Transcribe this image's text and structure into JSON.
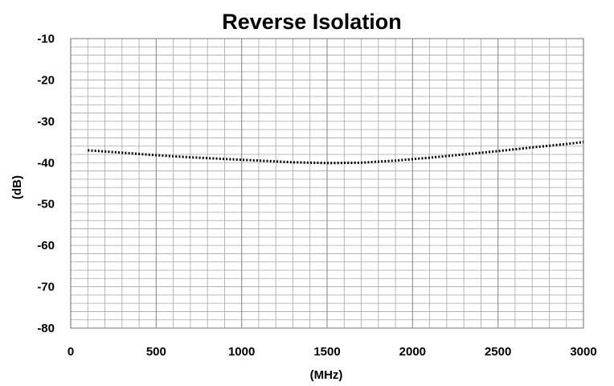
{
  "chart_data": {
    "type": "line",
    "title": "Reverse Isolation",
    "xlabel": "(MHz)",
    "ylabel": "(dB)",
    "xlim": [
      0,
      3000
    ],
    "ylim": [
      -80,
      -10
    ],
    "x_ticks": [
      0,
      500,
      1000,
      1500,
      2000,
      2500,
      3000
    ],
    "x_tick_labels": [
      "0",
      "500",
      "1000",
      "1500",
      "2000",
      "2500",
      "3000"
    ],
    "y_ticks": [
      -10,
      -20,
      -30,
      -40,
      -50,
      -60,
      -70,
      -80
    ],
    "y_tick_labels": [
      "-10",
      "-20",
      "-30",
      "-40",
      "-50",
      "-60",
      "-70",
      "-80"
    ],
    "grid": true,
    "line_style": "dotted",
    "series": [
      {
        "x": [
          100,
          300,
          500,
          700,
          900,
          1100,
          1300,
          1500,
          1700,
          1900,
          2100,
          2300,
          2500,
          2700,
          2900,
          3000
        ],
        "y": [
          -37.0,
          -37.6,
          -38.2,
          -38.7,
          -39.1,
          -39.5,
          -39.9,
          -40.1,
          -40.0,
          -39.5,
          -38.8,
          -38.0,
          -37.2,
          -36.3,
          -35.5,
          -35.0
        ]
      }
    ],
    "colors": {
      "line": "#000000",
      "grid": "#a6a6a6",
      "frame": "#8c8c8c"
    }
  }
}
